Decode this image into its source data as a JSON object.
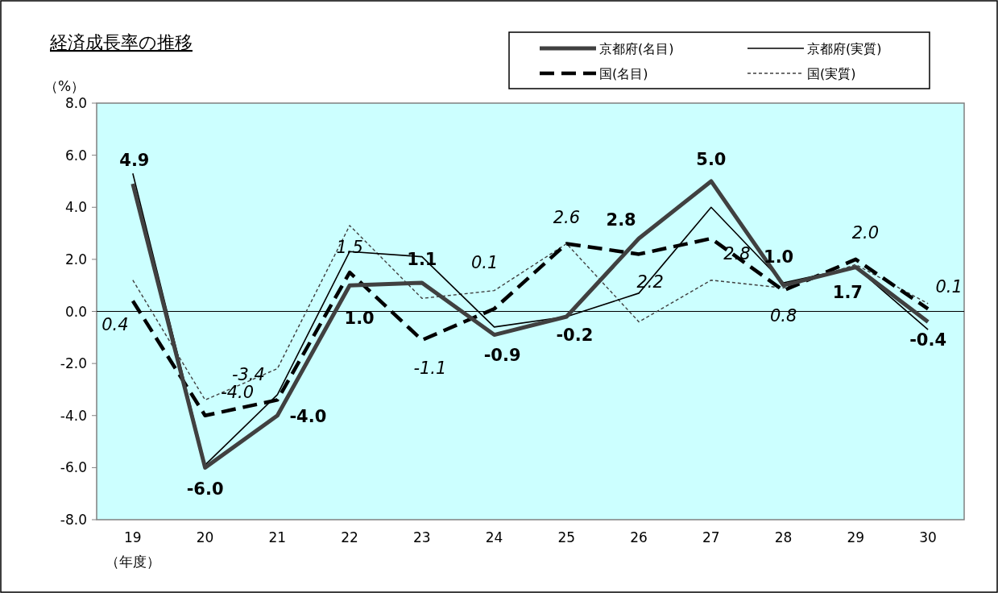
{
  "chart_data": {
    "type": "line",
    "title": "経済成長率の推移",
    "ylabel": "（%）",
    "xlabel": "（年度）",
    "categories": [
      "19",
      "20",
      "21",
      "22",
      "23",
      "24",
      "25",
      "26",
      "27",
      "28",
      "29",
      "30"
    ],
    "ylim": [
      -8,
      8
    ],
    "yticks": [
      {
        "value": -8,
        "label": "-8.0"
      },
      {
        "value": -6,
        "label": "-6.0"
      },
      {
        "value": -4,
        "label": "-4.0"
      },
      {
        "value": -2,
        "label": "-2.0"
      },
      {
        "value": 0,
        "label": "0.0"
      },
      {
        "value": 2,
        "label": "2.0"
      },
      {
        "value": 4,
        "label": "4.0"
      },
      {
        "value": 6,
        "label": "6.0"
      },
      {
        "value": 8,
        "label": "8.0"
      }
    ],
    "legend": "top",
    "marker": "none",
    "series": [
      {
        "name": "京都府(名目)",
        "color": "#404040",
        "line_style": "solid",
        "values": [
          4.9,
          -6.0,
          -4.0,
          1.0,
          1.1,
          -0.9,
          -0.2,
          2.8,
          5.0,
          1.0,
          1.7,
          -0.4
        ],
        "value_labels": [
          "4.9",
          "-6.0",
          "-4.0",
          "1.0",
          "1.1",
          "-0.9",
          "-0.2",
          "2.8",
          "5.0",
          "1.0",
          "1.7",
          "-0.4"
        ]
      },
      {
        "name": "京都府(実質)",
        "color": "#000000",
        "line_style": "solid",
        "values": [
          5.3,
          -5.9,
          -3.2,
          2.3,
          2.1,
          -0.6,
          -0.2,
          0.7,
          4.0,
          1.1,
          1.7,
          -0.7
        ]
      },
      {
        "name": "国(名目)",
        "color": "#000000",
        "line_style": "dashed",
        "values": [
          0.4,
          -4.0,
          -3.4,
          1.5,
          -1.1,
          0.1,
          2.6,
          2.2,
          2.8,
          0.8,
          2.0,
          0.1
        ],
        "value_labels": [
          "0.4",
          "-4.0",
          "-3.4",
          "1.5",
          "-1.1",
          "0.1",
          "2.6",
          "2.2",
          "2.8",
          "0.8",
          "2.0",
          "0.1"
        ]
      },
      {
        "name": "国(実質)",
        "color": "#404040",
        "line_style": "dotted",
        "values": [
          1.2,
          -3.4,
          -2.2,
          3.3,
          0.5,
          0.8,
          2.6,
          -0.4,
          1.2,
          0.9,
          1.8,
          0.3
        ]
      }
    ]
  }
}
